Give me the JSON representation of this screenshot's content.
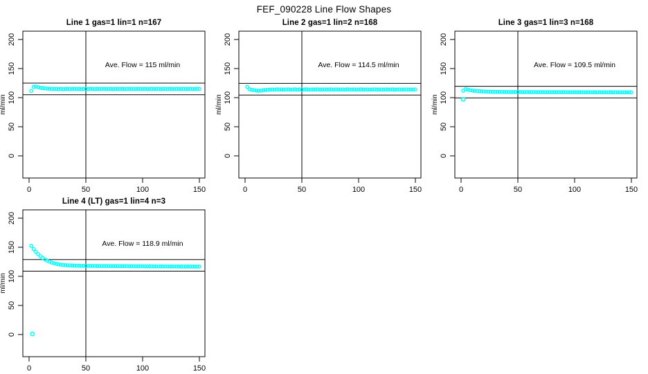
{
  "title": "FEF_090228  Line Flow Shapes",
  "colors": {
    "points": "#00FFFF",
    "axis": "#000000",
    "background": "#FFFFFF",
    "text": "#000000"
  },
  "chart_data": [
    {
      "type": "scatter",
      "title": "Line 1 gas=1 lin=1 n=167",
      "xlabel": "",
      "ylabel": "ml/min",
      "xlim": [
        0,
        150
      ],
      "ylim": [
        0,
        200
      ],
      "xticks": [
        0,
        50,
        100,
        150
      ],
      "yticks": [
        0,
        50,
        100,
        150,
        200
      ],
      "grid": false,
      "legend": "none",
      "vline_x": 50,
      "hlines": [
        105,
        125
      ],
      "annotation": "Ave. Flow =  115  ml/min",
      "ave_flow_ml_min": 115,
      "n": 167,
      "points": {
        "x0": 2,
        "dx": 2,
        "y": [
          111.5,
          118.5,
          119,
          118,
          117,
          116.5,
          116,
          115.5,
          115.5,
          115,
          115,
          115,
          114.8,
          115.2,
          114.6,
          115,
          115.3,
          114.7,
          115,
          115.2,
          114.8,
          115,
          114.6,
          115.2,
          115,
          114.8,
          115.3,
          115,
          114.7,
          115.1,
          114.9,
          115,
          115.2,
          114.8,
          115,
          115.1,
          114.7,
          115.2,
          115,
          114.9,
          115.1,
          114.8,
          115,
          115.2,
          114.9,
          115,
          114.8,
          115.1,
          115,
          114.9,
          115.2,
          114.8,
          115,
          115.1,
          114.9,
          115,
          115.2,
          114.8,
          115.1,
          115,
          114.9,
          115.1,
          115,
          114.8,
          115.2,
          115,
          114.9,
          115.1,
          114.8,
          115,
          115.1,
          114.9,
          115,
          115.1,
          115
        ]
      },
      "outliers": []
    },
    {
      "type": "scatter",
      "title": "Line 2 gas=1 lin=2 n=168",
      "xlabel": "",
      "ylabel": "ml/min",
      "xlim": [
        0,
        150
      ],
      "ylim": [
        0,
        200
      ],
      "xticks": [
        0,
        50,
        100,
        150
      ],
      "yticks": [
        0,
        50,
        100,
        150,
        200
      ],
      "grid": false,
      "legend": "none",
      "vline_x": 50,
      "hlines": [
        104.5,
        124.5
      ],
      "annotation": "Ave. Flow =  114.5  ml/min",
      "ave_flow_ml_min": 114.5,
      "n": 168,
      "points": {
        "x0": 2,
        "dx": 2,
        "y": [
          118.5,
          114.5,
          113.5,
          112.8,
          112.3,
          112,
          112.3,
          112.8,
          113.2,
          113.5,
          113.8,
          114,
          113.7,
          114.2,
          113.9,
          114.1,
          113.8,
          114,
          114.3,
          113.7,
          114,
          114.2,
          113.8,
          114.1,
          113.9,
          114,
          114.2,
          113.8,
          114,
          114.1,
          113.9,
          114.2,
          113.8,
          114,
          114.1,
          113.9,
          114,
          114.2,
          113.8,
          114.1,
          113.9,
          114,
          114.1,
          113.8,
          114.2,
          114,
          113.9,
          114.1,
          113.8,
          114,
          114.2,
          113.9,
          114,
          114.1,
          113.8,
          114,
          114.2,
          113.9,
          114.1,
          114,
          113.8,
          114.1,
          113.9,
          114,
          114.2,
          113.8,
          114,
          114.1,
          113.9,
          114,
          114.1,
          113.9,
          114,
          114.1,
          114
        ]
      },
      "outliers": []
    },
    {
      "type": "scatter",
      "title": "Line 3 gas=1 lin=3 n=168",
      "xlabel": "",
      "ylabel": "ml/min",
      "xlim": [
        0,
        150
      ],
      "ylim": [
        0,
        200
      ],
      "xticks": [
        0,
        50,
        100,
        150
      ],
      "yticks": [
        0,
        50,
        100,
        150,
        200
      ],
      "grid": false,
      "legend": "none",
      "vline_x": 50,
      "hlines": [
        99.5,
        119.5
      ],
      "annotation": "Ave. Flow =  109.5  ml/min",
      "ave_flow_ml_min": 109.5,
      "n": 168,
      "points": {
        "x0": 2,
        "dx": 2,
        "y": [
          112,
          114.5,
          113.8,
          112.8,
          112.2,
          111.8,
          111.4,
          111.1,
          110.8,
          110.6,
          110.4,
          110.3,
          110.2,
          110.1,
          110,
          110,
          109.9,
          110,
          109.8,
          109.9,
          109.8,
          109.7,
          109.8,
          109.6,
          109.7,
          109.8,
          109.6,
          109.5,
          109.7,
          109.5,
          109.6,
          109.4,
          109.6,
          109.5,
          109.4,
          109.6,
          109.5,
          109.3,
          109.5,
          109.4,
          109.5,
          109.3,
          109.5,
          109.4,
          109.3,
          109.5,
          109.4,
          109.2,
          109.4,
          109.3,
          109.4,
          109.2,
          109.4,
          109.3,
          109.2,
          109.4,
          109.3,
          109.1,
          109.3,
          109.2,
          109.3,
          109.1,
          109.3,
          109.2,
          109.1,
          109.3,
          109.2,
          109,
          109.2,
          109.1,
          109.2,
          109,
          109.1,
          109.2,
          109
        ]
      },
      "outliers": [
        [
          2,
          97
        ]
      ]
    },
    {
      "type": "scatter",
      "title": "Line 4 (LT) gas=1 lin=4 n=3",
      "xlabel": "",
      "ylabel": "ml/min",
      "xlim": [
        0,
        150
      ],
      "ylim": [
        0,
        200
      ],
      "xticks": [
        0,
        50,
        100,
        150
      ],
      "yticks": [
        0,
        50,
        100,
        150,
        200
      ],
      "grid": false,
      "legend": "none",
      "vline_x": 50,
      "hlines": [
        108.9,
        128.9
      ],
      "annotation": "Ave. Flow =  118.9  ml/min",
      "ave_flow_ml_min": 118.9,
      "n": 3,
      "points": {
        "x0": 2,
        "dx": 2,
        "y": [
          152.5,
          147,
          142.2,
          138.1,
          134.6,
          131.6,
          129.1,
          127,
          125.2,
          123.7,
          122.5,
          121.5,
          120.7,
          120.1,
          119.6,
          119.2,
          118.9,
          118.7,
          118.5,
          118.4,
          118.3,
          118.2,
          118.1,
          118.1,
          118,
          118,
          117.9,
          117.9,
          117.9,
          117.8,
          117.8,
          117.8,
          117.7,
          117.7,
          117.7,
          117.6,
          117.6,
          117.6,
          117.5,
          117.5,
          117.5,
          117.5,
          117.4,
          117.4,
          117.4,
          117.4,
          117.3,
          117.3,
          117.3,
          117.3,
          117.2,
          117.2,
          117.2,
          117.2,
          117.2,
          117.1,
          117.1,
          117.1,
          117.1,
          117.1,
          117,
          117,
          117,
          117,
          117,
          117,
          116.9,
          116.9,
          116.9,
          116.9,
          116.9,
          116.8,
          116.8,
          116.8,
          116.8
        ]
      },
      "outliers": [
        [
          3,
          1
        ]
      ]
    }
  ]
}
